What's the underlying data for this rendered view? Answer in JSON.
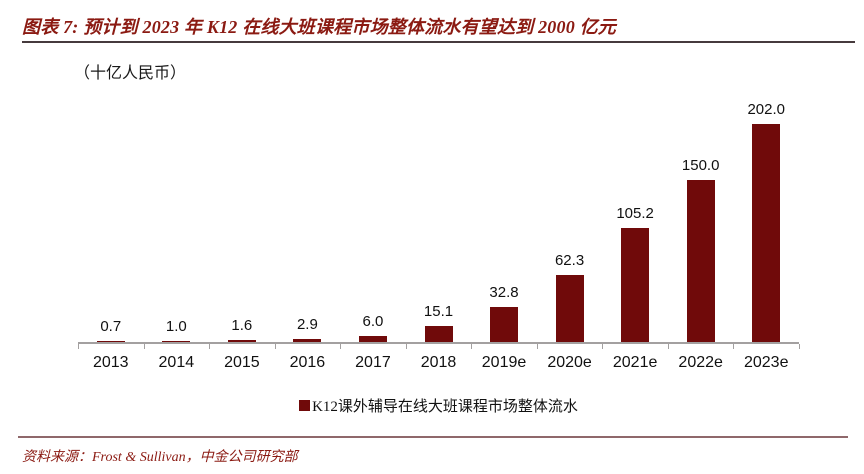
{
  "header": {
    "title": "图表 7: 预计到 2023 年 K12 在线大班课程市场整体流水有望达到 2000 亿元"
  },
  "unit_label": "（十亿人民币）",
  "chart_data": {
    "type": "bar",
    "title": "预计到 2023 年 K12 在线大班课程市场整体流水有望达到 2000 亿元",
    "categories": [
      "2013",
      "2014",
      "2015",
      "2016",
      "2017",
      "2018",
      "2019e",
      "2020e",
      "2021e",
      "2022e",
      "2023e"
    ],
    "values": [
      0.7,
      1.0,
      1.6,
      2.9,
      6.0,
      15.1,
      32.8,
      62.3,
      105.2,
      150.0,
      202.0
    ],
    "value_labels": [
      "0.7",
      "1.0",
      "1.6",
      "2.9",
      "6.0",
      "15.1",
      "32.8",
      "62.3",
      "105.2",
      "150.0",
      "202.0"
    ],
    "xlabel": "",
    "ylabel": "（十亿人民币）",
    "ylim": [
      0,
      210
    ],
    "grid": false,
    "legend_position": "bottom",
    "series_name": "K12课外辅导在线大班课程市场整体流水",
    "bar_color": "#700a0a"
  },
  "legend": {
    "label": "K12课外辅导在线大班课程市场整体流水"
  },
  "footer": {
    "source": "资料来源：Frost & Sullivan，中金公司研究部"
  },
  "colors": {
    "bar": "#700a0a",
    "title_text": "#8b1a12",
    "source_text": "#8b1a12",
    "axis": "#a3a0a0",
    "title_rule": "#463a3d",
    "footer_rule": "#8f686b"
  }
}
